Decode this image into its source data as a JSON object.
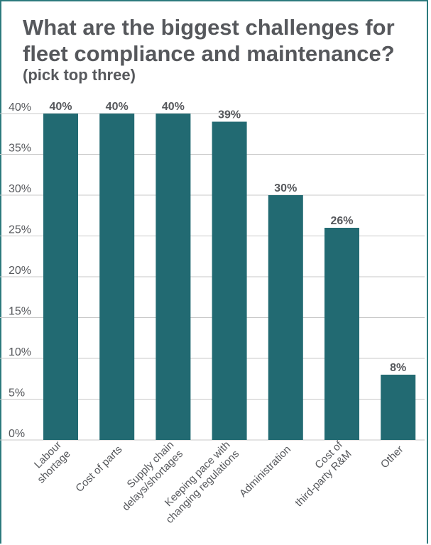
{
  "title": "What are the biggest challenges for fleet compliance and maintenance?",
  "subtitle": "(pick top three)",
  "colors": {
    "bar": "#226a72",
    "grid": "#c9c9c9",
    "text": "#56585c",
    "frame": "#2c7a7d"
  },
  "chart_data": {
    "type": "bar",
    "categories": [
      [
        "Labour",
        "shortage"
      ],
      [
        "Cost of parts"
      ],
      [
        "Supply chain",
        "delays/shortages"
      ],
      [
        "Keeping pace with",
        "changing regulations"
      ],
      [
        "Administration"
      ],
      [
        "Cost of",
        "third-party R&M"
      ],
      [
        "Other"
      ]
    ],
    "values": [
      40,
      40,
      40,
      39,
      30,
      26,
      8
    ],
    "data_labels": [
      "40%",
      "40%",
      "40%",
      "39%",
      "30%",
      "26%",
      "8%"
    ],
    "yticks": [
      "0%",
      "5%",
      "10%",
      "15%",
      "20%",
      "25%",
      "30%",
      "35%",
      "40%"
    ],
    "ylim": [
      0,
      40
    ],
    "grid": true,
    "xlabel": "",
    "ylabel": ""
  }
}
